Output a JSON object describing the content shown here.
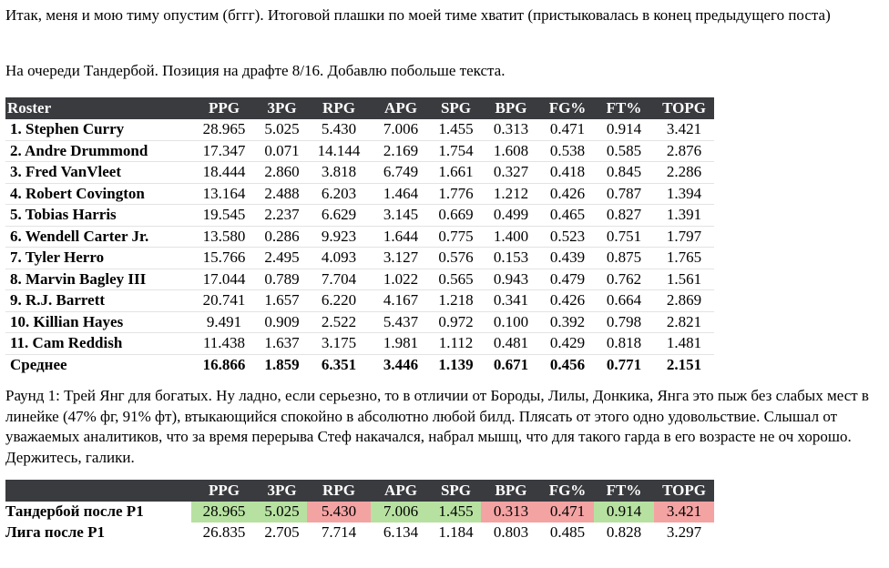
{
  "paragraphs": {
    "p1": "Итак, меня и мою тиму опустим (бггг). Итоговой плашки по моей тиме хватит (пристыковалась в конец предыдущего поста)",
    "p2": "На очереди Тандербой. Позиция на драфте 8/16. Добавлю побольше текста.",
    "p3": "Раунд 1: Трей Янг для богатых. Ну ладно, если серьезно, то в отличии от Бороды, Лилы, Донкика, Янга это пыж без слабых мест в линейке (47% фг, 91% фт), втыкающийся спокойно в абсолютно любой билд. Плясать от этого одно удовольствие. Слышал от уважаемых аналитиков, что за время перерыва Стеф накачался, набрал мышц, что для такого гарда в его возрасте не оч хорошо. Держитесь, галики."
  },
  "roster_table": {
    "headers": [
      "Roster",
      "PPG",
      "3PG",
      "RPG",
      "APG",
      "SPG",
      "BPG",
      "FG%",
      "FT%",
      "TOPG"
    ],
    "rows": [
      [
        "1. Stephen Curry",
        "28.965",
        "5.025",
        "5.430",
        "7.006",
        "1.455",
        "0.313",
        "0.471",
        "0.914",
        "3.421"
      ],
      [
        "2. Andre Drummond",
        "17.347",
        "0.071",
        "14.144",
        "2.169",
        "1.754",
        "1.608",
        "0.538",
        "0.585",
        "2.876"
      ],
      [
        "3. Fred VanVleet",
        "18.444",
        "2.860",
        "3.818",
        "6.749",
        "1.661",
        "0.327",
        "0.418",
        "0.845",
        "2.286"
      ],
      [
        "4. Robert Covington",
        "13.164",
        "2.488",
        "6.203",
        "1.464",
        "1.776",
        "1.212",
        "0.426",
        "0.787",
        "1.394"
      ],
      [
        "5. Tobias Harris",
        "19.545",
        "2.237",
        "6.629",
        "3.145",
        "0.669",
        "0.499",
        "0.465",
        "0.827",
        "1.391"
      ],
      [
        "6. Wendell Carter Jr.",
        "13.580",
        "0.286",
        "9.923",
        "1.644",
        "0.775",
        "1.400",
        "0.523",
        "0.751",
        "1.797"
      ],
      [
        "7. Tyler Herro",
        "15.766",
        "2.495",
        "4.093",
        "3.127",
        "0.576",
        "0.153",
        "0.439",
        "0.875",
        "1.765"
      ],
      [
        "8. Marvin Bagley III",
        "17.044",
        "0.789",
        "7.704",
        "1.022",
        "0.565",
        "0.943",
        "0.479",
        "0.762",
        "1.561"
      ],
      [
        "9. R.J. Barrett",
        "20.741",
        "1.657",
        "6.220",
        "4.167",
        "1.218",
        "0.341",
        "0.426",
        "0.664",
        "2.869"
      ],
      [
        "10. Killian Hayes",
        "9.491",
        "0.909",
        "2.522",
        "5.437",
        "0.972",
        "0.100",
        "0.392",
        "0.798",
        "2.821"
      ],
      [
        "11. Cam Reddish",
        "11.438",
        "1.637",
        "3.175",
        "1.981",
        "1.112",
        "0.481",
        "0.429",
        "0.818",
        "1.481"
      ]
    ],
    "average": [
      "Среднее",
      "16.866",
      "1.859",
      "6.351",
      "3.446",
      "1.139",
      "0.671",
      "0.456",
      "0.771",
      "2.151"
    ]
  },
  "compare_table": {
    "headers": [
      "",
      "PPG",
      "3PG",
      "RPG",
      "APG",
      "SPG",
      "BPG",
      "FG%",
      "FT%",
      "TOPG"
    ],
    "rows": [
      {
        "cells": [
          "Тандербой после Р1",
          "28.965",
          "5.025",
          "5.430",
          "7.006",
          "1.455",
          "0.313",
          "0.471",
          "0.914",
          "3.421"
        ],
        "status": [
          "",
          "green",
          "green",
          "red",
          "green",
          "green",
          "red",
          "red",
          "green",
          "red"
        ]
      },
      {
        "cells": [
          "Лига после Р1",
          "26.835",
          "2.705",
          "7.714",
          "6.134",
          "1.184",
          "0.803",
          "0.485",
          "0.828",
          "3.297"
        ],
        "status": [
          "",
          "",
          "",
          "",
          "",
          "",
          "",
          "",
          "",
          ""
        ]
      }
    ]
  },
  "colors": {
    "header_bg": "#3a3b3f",
    "better": "#b7e1a1",
    "worse": "#f4a3a3"
  }
}
